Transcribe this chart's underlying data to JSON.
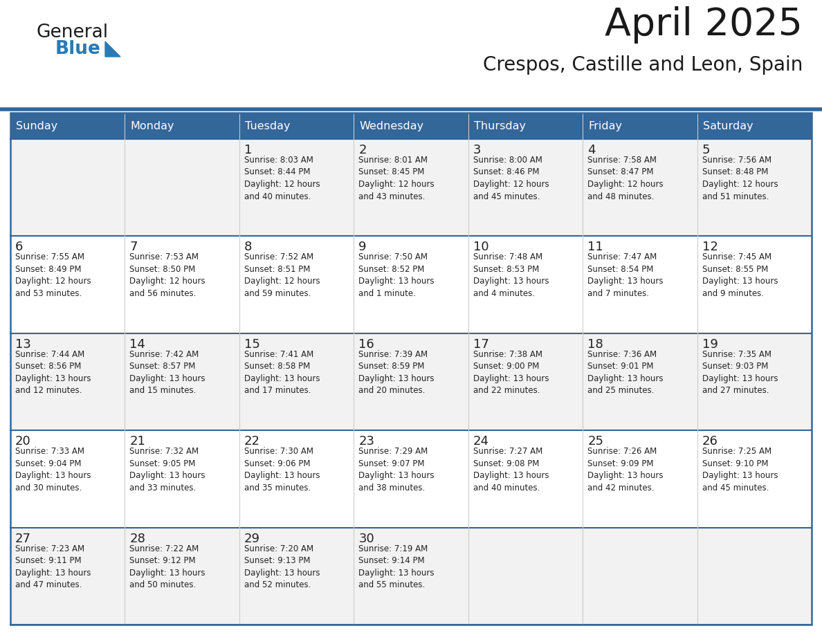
{
  "title": "April 2025",
  "subtitle": "Crespos, Castille and Leon, Spain",
  "header_color": "#336699",
  "header_text_color": "#ffffff",
  "cell_bg_even": "#f2f2f2",
  "cell_bg_odd": "#ffffff",
  "cell_text_color": "#222222",
  "grid_line_color": "#336699",
  "vert_line_color": "#cccccc",
  "days_of_week": [
    "Sunday",
    "Monday",
    "Tuesday",
    "Wednesday",
    "Thursday",
    "Friday",
    "Saturday"
  ],
  "logo_color": "#2a7ab5",
  "calendar_data": [
    [
      {
        "day": "",
        "info": ""
      },
      {
        "day": "",
        "info": ""
      },
      {
        "day": "1",
        "info": "Sunrise: 8:03 AM\nSunset: 8:44 PM\nDaylight: 12 hours\nand 40 minutes."
      },
      {
        "day": "2",
        "info": "Sunrise: 8:01 AM\nSunset: 8:45 PM\nDaylight: 12 hours\nand 43 minutes."
      },
      {
        "day": "3",
        "info": "Sunrise: 8:00 AM\nSunset: 8:46 PM\nDaylight: 12 hours\nand 45 minutes."
      },
      {
        "day": "4",
        "info": "Sunrise: 7:58 AM\nSunset: 8:47 PM\nDaylight: 12 hours\nand 48 minutes."
      },
      {
        "day": "5",
        "info": "Sunrise: 7:56 AM\nSunset: 8:48 PM\nDaylight: 12 hours\nand 51 minutes."
      }
    ],
    [
      {
        "day": "6",
        "info": "Sunrise: 7:55 AM\nSunset: 8:49 PM\nDaylight: 12 hours\nand 53 minutes."
      },
      {
        "day": "7",
        "info": "Sunrise: 7:53 AM\nSunset: 8:50 PM\nDaylight: 12 hours\nand 56 minutes."
      },
      {
        "day": "8",
        "info": "Sunrise: 7:52 AM\nSunset: 8:51 PM\nDaylight: 12 hours\nand 59 minutes."
      },
      {
        "day": "9",
        "info": "Sunrise: 7:50 AM\nSunset: 8:52 PM\nDaylight: 13 hours\nand 1 minute."
      },
      {
        "day": "10",
        "info": "Sunrise: 7:48 AM\nSunset: 8:53 PM\nDaylight: 13 hours\nand 4 minutes."
      },
      {
        "day": "11",
        "info": "Sunrise: 7:47 AM\nSunset: 8:54 PM\nDaylight: 13 hours\nand 7 minutes."
      },
      {
        "day": "12",
        "info": "Sunrise: 7:45 AM\nSunset: 8:55 PM\nDaylight: 13 hours\nand 9 minutes."
      }
    ],
    [
      {
        "day": "13",
        "info": "Sunrise: 7:44 AM\nSunset: 8:56 PM\nDaylight: 13 hours\nand 12 minutes."
      },
      {
        "day": "14",
        "info": "Sunrise: 7:42 AM\nSunset: 8:57 PM\nDaylight: 13 hours\nand 15 minutes."
      },
      {
        "day": "15",
        "info": "Sunrise: 7:41 AM\nSunset: 8:58 PM\nDaylight: 13 hours\nand 17 minutes."
      },
      {
        "day": "16",
        "info": "Sunrise: 7:39 AM\nSunset: 8:59 PM\nDaylight: 13 hours\nand 20 minutes."
      },
      {
        "day": "17",
        "info": "Sunrise: 7:38 AM\nSunset: 9:00 PM\nDaylight: 13 hours\nand 22 minutes."
      },
      {
        "day": "18",
        "info": "Sunrise: 7:36 AM\nSunset: 9:01 PM\nDaylight: 13 hours\nand 25 minutes."
      },
      {
        "day": "19",
        "info": "Sunrise: 7:35 AM\nSunset: 9:03 PM\nDaylight: 13 hours\nand 27 minutes."
      }
    ],
    [
      {
        "day": "20",
        "info": "Sunrise: 7:33 AM\nSunset: 9:04 PM\nDaylight: 13 hours\nand 30 minutes."
      },
      {
        "day": "21",
        "info": "Sunrise: 7:32 AM\nSunset: 9:05 PM\nDaylight: 13 hours\nand 33 minutes."
      },
      {
        "day": "22",
        "info": "Sunrise: 7:30 AM\nSunset: 9:06 PM\nDaylight: 13 hours\nand 35 minutes."
      },
      {
        "day": "23",
        "info": "Sunrise: 7:29 AM\nSunset: 9:07 PM\nDaylight: 13 hours\nand 38 minutes."
      },
      {
        "day": "24",
        "info": "Sunrise: 7:27 AM\nSunset: 9:08 PM\nDaylight: 13 hours\nand 40 minutes."
      },
      {
        "day": "25",
        "info": "Sunrise: 7:26 AM\nSunset: 9:09 PM\nDaylight: 13 hours\nand 42 minutes."
      },
      {
        "day": "26",
        "info": "Sunrise: 7:25 AM\nSunset: 9:10 PM\nDaylight: 13 hours\nand 45 minutes."
      }
    ],
    [
      {
        "day": "27",
        "info": "Sunrise: 7:23 AM\nSunset: 9:11 PM\nDaylight: 13 hours\nand 47 minutes."
      },
      {
        "day": "28",
        "info": "Sunrise: 7:22 AM\nSunset: 9:12 PM\nDaylight: 13 hours\nand 50 minutes."
      },
      {
        "day": "29",
        "info": "Sunrise: 7:20 AM\nSunset: 9:13 PM\nDaylight: 13 hours\nand 52 minutes."
      },
      {
        "day": "30",
        "info": "Sunrise: 7:19 AM\nSunset: 9:14 PM\nDaylight: 13 hours\nand 55 minutes."
      },
      {
        "day": "",
        "info": ""
      },
      {
        "day": "",
        "info": ""
      },
      {
        "day": "",
        "info": ""
      }
    ]
  ]
}
